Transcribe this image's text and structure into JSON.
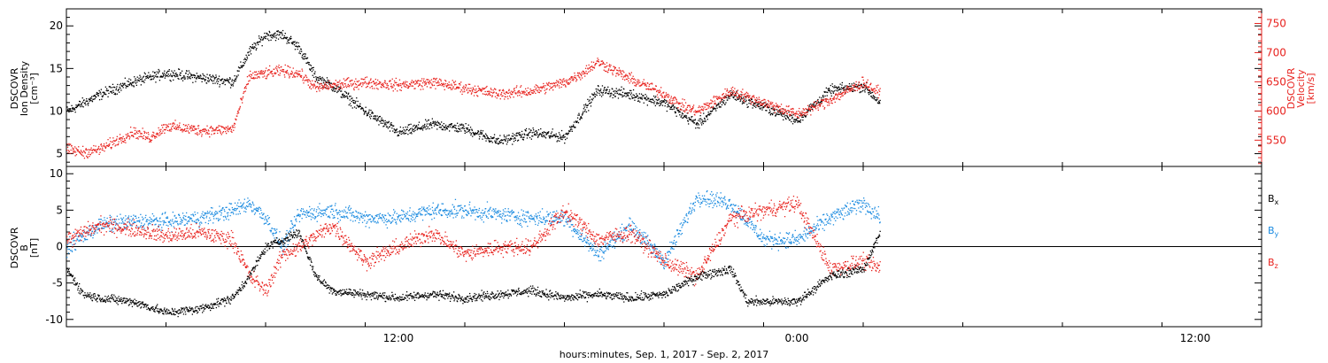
{
  "colors": {
    "black": "#000000",
    "red": "#e8231f",
    "blue": "#1b8be0"
  },
  "chart_data": [
    {
      "type": "scatter",
      "panel": "top",
      "xlabel": "hours:minutes, Sep.  1, 2017 - Sep.  2, 2017",
      "x_tick_labels": [
        "12:00",
        "0:00",
        "12:00"
      ],
      "x_tick_hours": [
        12,
        24,
        36
      ],
      "xlim_hours": [
        2,
        38
      ],
      "data_end_hour": 26.5,
      "left_axis": {
        "label_lines": [
          "DSCOVR",
          "Ion Density",
          "[cm⁻³]"
        ],
        "ylim": [
          3.5,
          22
        ],
        "ticks": [
          5,
          10,
          15,
          20
        ]
      },
      "right_axis": {
        "label_lines": [
          "DSCOVR",
          "Velocity",
          "[km/s]"
        ],
        "ylim": [
          505,
          775
        ],
        "ticks": [
          550,
          600,
          650,
          700,
          750
        ]
      },
      "series": [
        {
          "name": "Ion Density",
          "axis": "left",
          "color": "#000000",
          "x": [
            2.0,
            3.0,
            4.0,
            5.0,
            6.0,
            7.0,
            7.5,
            8.0,
            8.5,
            9.0,
            9.5,
            10.0,
            11.0,
            12.0,
            13.0,
            14.0,
            15.0,
            16.0,
            17.0,
            18.0,
            19.0,
            20.0,
            21.0,
            22.0,
            23.0,
            24.0,
            25.0,
            26.0,
            26.5
          ],
          "y": [
            10.0,
            12.0,
            13.5,
            14.5,
            14.0,
            13.5,
            17.0,
            19.0,
            19.0,
            17.5,
            14.0,
            13.0,
            10.0,
            7.5,
            8.5,
            8.0,
            6.5,
            7.5,
            7.0,
            12.5,
            12.0,
            11.0,
            8.5,
            12.0,
            10.5,
            9.0,
            12.5,
            13.0,
            11.0
          ]
        },
        {
          "name": "Velocity",
          "axis": "right",
          "color": "#e8231f",
          "x": [
            2.0,
            2.5,
            3.0,
            3.5,
            4.0,
            4.5,
            5.0,
            6.0,
            6.5,
            7.0,
            7.5,
            8.0,
            8.5,
            9.0,
            9.5,
            10.0,
            11.0,
            12.0,
            13.0,
            14.0,
            15.0,
            16.0,
            17.0,
            17.5,
            18.0,
            19.0,
            20.0,
            20.5,
            21.0,
            22.0,
            23.0,
            24.0,
            25.0,
            26.0,
            26.5
          ],
          "y": [
            535,
            530,
            535,
            550,
            565,
            555,
            575,
            568,
            568,
            570,
            660,
            665,
            670,
            665,
            640,
            645,
            650,
            645,
            650,
            640,
            630,
            635,
            650,
            665,
            685,
            655,
            630,
            610,
            600,
            635,
            615,
            595,
            620,
            650,
            630
          ]
        }
      ]
    },
    {
      "type": "scatter",
      "panel": "bottom",
      "xlabel": "hours:minutes, Sep.  1, 2017 - Sep.  2, 2017",
      "left_axis": {
        "label_lines": [
          "DSCOVR",
          "B",
          "[nT]"
        ],
        "ylim": [
          -11,
          11
        ],
        "ticks": [
          -10,
          -5,
          0,
          5,
          10
        ]
      },
      "legend": [
        {
          "name": "B",
          "sub": "x",
          "color": "#000000"
        },
        {
          "name": "B",
          "sub": "y",
          "color": "#1b8be0"
        },
        {
          "name": "B",
          "sub": "z",
          "color": "#e8231f"
        }
      ],
      "series": [
        {
          "name": "Bx",
          "color": "#000000",
          "x": [
            2.0,
            2.5,
            3.0,
            4.0,
            5.0,
            6.0,
            7.0,
            7.5,
            8.0,
            8.5,
            9.0,
            9.5,
            10.0,
            11.0,
            12.0,
            13.0,
            14.0,
            15.0,
            16.0,
            17.0,
            18.0,
            19.0,
            20.0,
            21.0,
            22.0,
            22.5,
            23.0,
            24.0,
            25.0,
            26.0,
            26.5
          ],
          "y": [
            -3.0,
            -6.5,
            -7.0,
            -7.5,
            -9.0,
            -8.5,
            -7.0,
            -4.0,
            0.0,
            1.0,
            2.0,
            -4.0,
            -6.0,
            -6.5,
            -7.0,
            -6.5,
            -7.0,
            -6.5,
            -6.0,
            -7.0,
            -6.5,
            -7.0,
            -6.5,
            -4.0,
            -3.0,
            -7.5,
            -7.5,
            -7.5,
            -4.0,
            -3.0,
            2.0
          ]
        },
        {
          "name": "By",
          "color": "#1b8be0",
          "x": [
            2.0,
            3.0,
            4.0,
            5.0,
            6.0,
            7.0,
            7.5,
            8.0,
            8.5,
            9.0,
            10.0,
            11.0,
            12.0,
            13.0,
            14.0,
            15.0,
            16.0,
            17.0,
            18.0,
            19.0,
            20.0,
            21.0,
            22.0,
            23.0,
            24.0,
            25.0,
            26.0,
            26.5
          ],
          "y": [
            0.0,
            3.0,
            3.5,
            3.5,
            4.0,
            5.0,
            6.0,
            4.0,
            0.0,
            4.5,
            5.0,
            4.0,
            4.0,
            5.0,
            5.0,
            4.5,
            4.0,
            4.0,
            -1.0,
            3.0,
            -2.0,
            7.0,
            6.0,
            1.0,
            1.0,
            4.0,
            6.0,
            4.0
          ]
        },
        {
          "name": "Bz",
          "color": "#e8231f",
          "x": [
            2.0,
            3.0,
            4.0,
            5.0,
            6.0,
            7.0,
            7.5,
            8.0,
            8.5,
            9.0,
            10.0,
            11.0,
            12.0,
            13.0,
            14.0,
            15.0,
            16.0,
            17.0,
            18.0,
            19.0,
            20.0,
            21.0,
            22.0,
            23.0,
            24.0,
            25.0,
            26.0,
            26.5
          ],
          "y": [
            1.0,
            3.0,
            2.5,
            1.5,
            2.0,
            1.0,
            -4.0,
            -6.0,
            -1.0,
            0.0,
            3.0,
            -2.0,
            0.0,
            2.0,
            -1.0,
            0.0,
            0.0,
            5.0,
            1.0,
            2.0,
            -2.0,
            -4.0,
            4.0,
            5.0,
            6.0,
            -3.0,
            -2.0,
            -3.0
          ]
        }
      ]
    }
  ]
}
